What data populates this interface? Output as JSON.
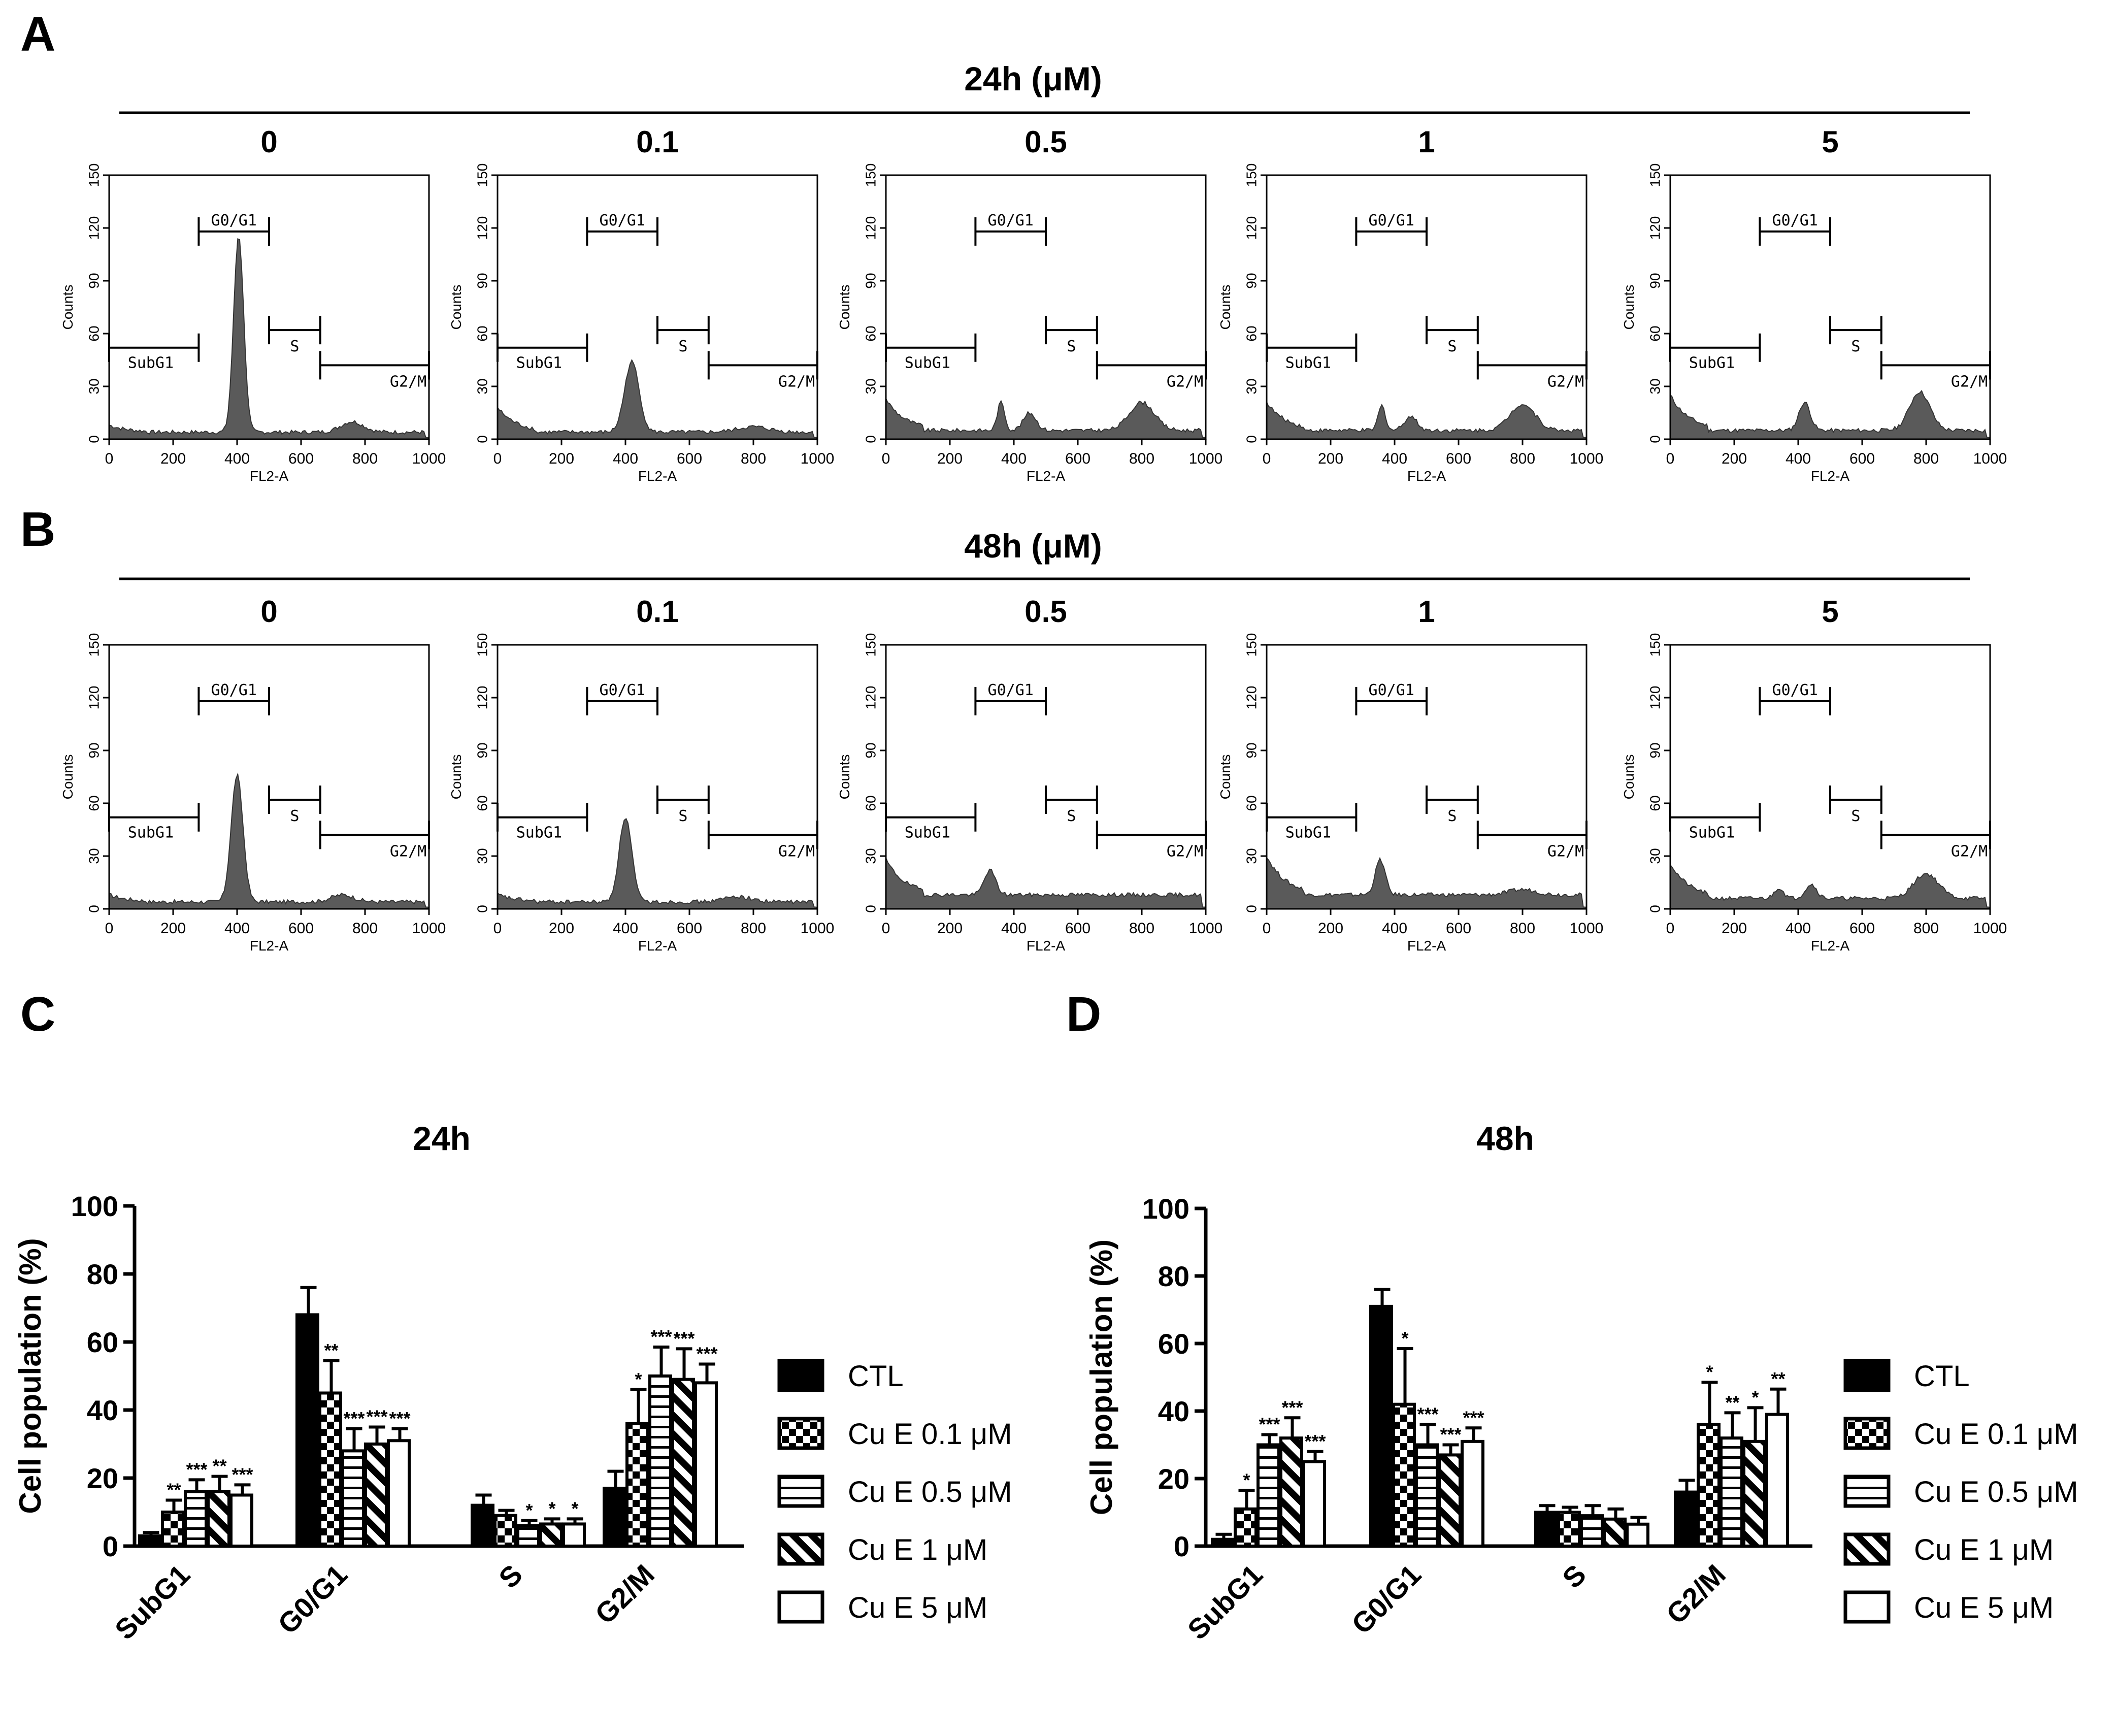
{
  "panel_labels": {
    "A": "A",
    "B": "B",
    "C": "C",
    "D": "D"
  },
  "colors": {
    "fill": "#5a5a5a",
    "ink": "#000000",
    "bg": "#ffffff"
  },
  "histograms": {
    "x_axis_label": "FL2-A",
    "y_axis_label": "Counts",
    "x_ticks": [
      "0",
      "200",
      "400",
      "600",
      "800",
      "1000"
    ],
    "y_ticks": [
      "0",
      "30",
      "60",
      "90",
      "120",
      "150"
    ],
    "gates": {
      "subg1": "SubG1",
      "g0g1": "G0/G1",
      "s": "S",
      "g2m": "G2/M"
    },
    "rows": [
      {
        "title": "24h (μM)",
        "panels": [
          {
            "dose": "0",
            "peaks": [
              {
                "x": 405,
                "h": 112,
                "w": 22
              },
              {
                "x": 760,
                "h": 6,
                "w": 50
              }
            ],
            "base": 4,
            "sub": 4
          },
          {
            "dose": "0.1",
            "peaks": [
              {
                "x": 420,
                "h": 40,
                "w": 32
              },
              {
                "x": 800,
                "h": 3,
                "w": 70
              }
            ],
            "base": 4,
            "sub": 14
          },
          {
            "dose": "0.5",
            "peaks": [
              {
                "x": 360,
                "h": 16,
                "w": 16
              },
              {
                "x": 450,
                "h": 10,
                "w": 28
              },
              {
                "x": 800,
                "h": 16,
                "w": 55
              }
            ],
            "base": 5,
            "sub": 18
          },
          {
            "dose": "1",
            "peaks": [
              {
                "x": 360,
                "h": 14,
                "w": 16
              },
              {
                "x": 450,
                "h": 8,
                "w": 28
              },
              {
                "x": 800,
                "h": 15,
                "w": 55
              }
            ],
            "base": 5,
            "sub": 16
          },
          {
            "dose": "5",
            "peaks": [
              {
                "x": 420,
                "h": 16,
                "w": 25
              },
              {
                "x": 780,
                "h": 22,
                "w": 45
              }
            ],
            "base": 5,
            "sub": 20
          }
        ]
      },
      {
        "title": "48h (μM)",
        "panels": [
          {
            "dose": "0",
            "peaks": [
              {
                "x": 400,
                "h": 72,
                "w": 26
              },
              {
                "x": 730,
                "h": 4,
                "w": 50
              }
            ],
            "base": 4,
            "sub": 4
          },
          {
            "dose": "0.1",
            "peaks": [
              {
                "x": 400,
                "h": 48,
                "w": 28
              },
              {
                "x": 750,
                "h": 3,
                "w": 60
              }
            ],
            "base": 4,
            "sub": 4
          },
          {
            "dose": "0.5",
            "peaks": [
              {
                "x": 325,
                "h": 14,
                "w": 25
              }
            ],
            "base": 8,
            "sub": 20
          },
          {
            "dose": "1",
            "peaks": [
              {
                "x": 355,
                "h": 20,
                "w": 22
              },
              {
                "x": 800,
                "h": 3,
                "w": 60
              }
            ],
            "base": 8,
            "sub": 22
          },
          {
            "dose": "5",
            "peaks": [
              {
                "x": 340,
                "h": 6,
                "w": 20
              },
              {
                "x": 440,
                "h": 8,
                "w": 25
              },
              {
                "x": 800,
                "h": 14,
                "w": 55
              }
            ],
            "base": 6,
            "sub": 20
          }
        ]
      }
    ]
  },
  "chart_data": [
    {
      "type": "bar",
      "panel": "C",
      "title": "24h",
      "ylabel": "Cell population (%)",
      "ylim": [
        0,
        100
      ],
      "y_ticks": [
        "0",
        "20",
        "40",
        "60",
        "80",
        "100"
      ],
      "categories": [
        "SubG1",
        "G0/G1",
        "S",
        "G2/M"
      ],
      "series": [
        {
          "name": "CTL",
          "values": [
            3,
            68,
            12,
            17
          ],
          "errors": [
            1,
            8,
            3,
            5
          ],
          "stars": [
            "",
            "",
            "",
            ""
          ]
        },
        {
          "name": "Cu E 0.1 μM",
          "values": [
            10,
            45,
            9,
            36
          ],
          "errors": [
            3.5,
            9.5,
            1.5,
            10
          ],
          "stars": [
            "**",
            "**",
            "",
            "*"
          ]
        },
        {
          "name": "Cu E 0.5 μM",
          "values": [
            16,
            28,
            6,
            50
          ],
          "errors": [
            3.5,
            6.5,
            1.5,
            8.5
          ],
          "stars": [
            "***",
            "***",
            "*",
            "***"
          ]
        },
        {
          "name": "Cu E 1 μM",
          "values": [
            16,
            30,
            6.5,
            49
          ],
          "errors": [
            4.5,
            5,
            1.5,
            9
          ],
          "stars": [
            "**",
            "***",
            "*",
            "***"
          ]
        },
        {
          "name": "Cu E 5 μM",
          "values": [
            15,
            31,
            6.5,
            48
          ],
          "errors": [
            3,
            3.5,
            1.5,
            5.5
          ],
          "stars": [
            "***",
            "***",
            "*",
            "***"
          ]
        }
      ]
    },
    {
      "type": "bar",
      "panel": "D",
      "title": "48h",
      "ylabel": "Cell population (%)",
      "ylim": [
        0,
        100
      ],
      "y_ticks": [
        "0",
        "20",
        "40",
        "60",
        "80",
        "100"
      ],
      "categories": [
        "SubG1",
        "G0/G1",
        "S",
        "G2/M"
      ],
      "series": [
        {
          "name": "CTL",
          "values": [
            2,
            71,
            10,
            16
          ],
          "errors": [
            1.5,
            5,
            2,
            3.5
          ],
          "stars": [
            "",
            "",
            "",
            ""
          ]
        },
        {
          "name": "Cu E 0.1 μM",
          "values": [
            11,
            42,
            10,
            36
          ],
          "errors": [
            5.5,
            16.5,
            1.5,
            12.5
          ],
          "stars": [
            "*",
            "*",
            "",
            "*"
          ]
        },
        {
          "name": "Cu E 0.5 μM",
          "values": [
            30,
            30,
            9,
            32
          ],
          "errors": [
            3,
            6,
            3,
            7.5
          ],
          "stars": [
            "***",
            "***",
            "",
            "**"
          ]
        },
        {
          "name": "Cu E 1 μM",
          "values": [
            32,
            27,
            8,
            31
          ],
          "errors": [
            6,
            3,
            3,
            10
          ],
          "stars": [
            "***",
            "***",
            "",
            "*"
          ]
        },
        {
          "name": "Cu E 5 μM",
          "values": [
            25,
            31,
            6.5,
            39
          ],
          "errors": [
            3,
            4,
            2,
            7.5
          ],
          "stars": [
            "***",
            "***",
            "",
            "**"
          ]
        }
      ]
    }
  ]
}
